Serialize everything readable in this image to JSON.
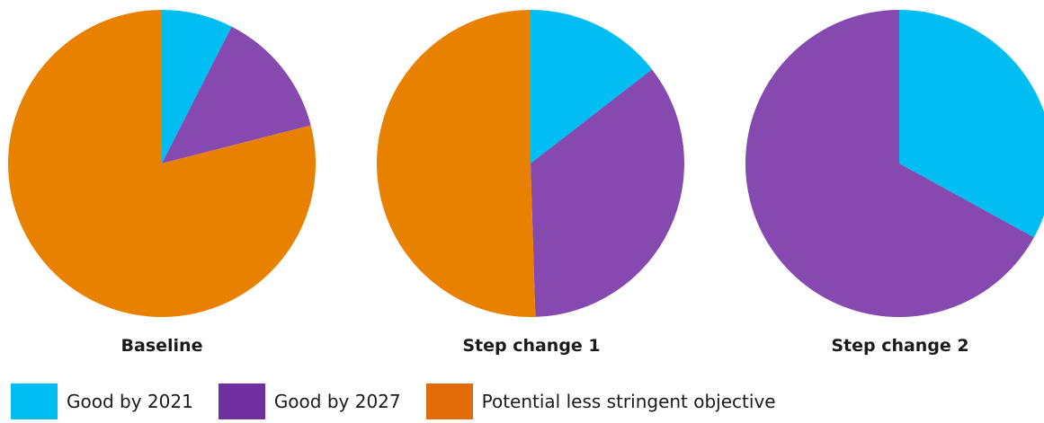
{
  "chart_data": {
    "type": "pie",
    "legend": [
      {
        "label": "Good by 2021",
        "color": "#00BDF2"
      },
      {
        "label": "Good by 2027",
        "color": "#8549AF"
      },
      {
        "label": "Potential less stringent objective",
        "color": "#E88000"
      }
    ],
    "legend_swatch_colors": [
      "#00BDF2",
      "#7030A0",
      "#E36C09"
    ],
    "legend_placement": "bottom",
    "charts": [
      {
        "label": "Baseline",
        "slices": [
          {
            "name": "Good by 2021",
            "value": 7.5
          },
          {
            "name": "Good by 2027",
            "value": 13.5
          },
          {
            "name": "Potential less stringent objective",
            "value": 79.0
          }
        ]
      },
      {
        "label": "Step change 1",
        "slices": [
          {
            "name": "Good by 2021",
            "value": 14.5
          },
          {
            "name": "Good by 2027",
            "value": 35.0
          },
          {
            "name": "Potential less stringent objective",
            "value": 50.5
          }
        ]
      },
      {
        "label": "Step change 2",
        "slices": [
          {
            "name": "Good by 2021",
            "value": 33.0
          },
          {
            "name": "Good by 2027",
            "value": 67.0
          },
          {
            "name": "Potential less stringent objective",
            "value": 0
          }
        ]
      }
    ]
  }
}
